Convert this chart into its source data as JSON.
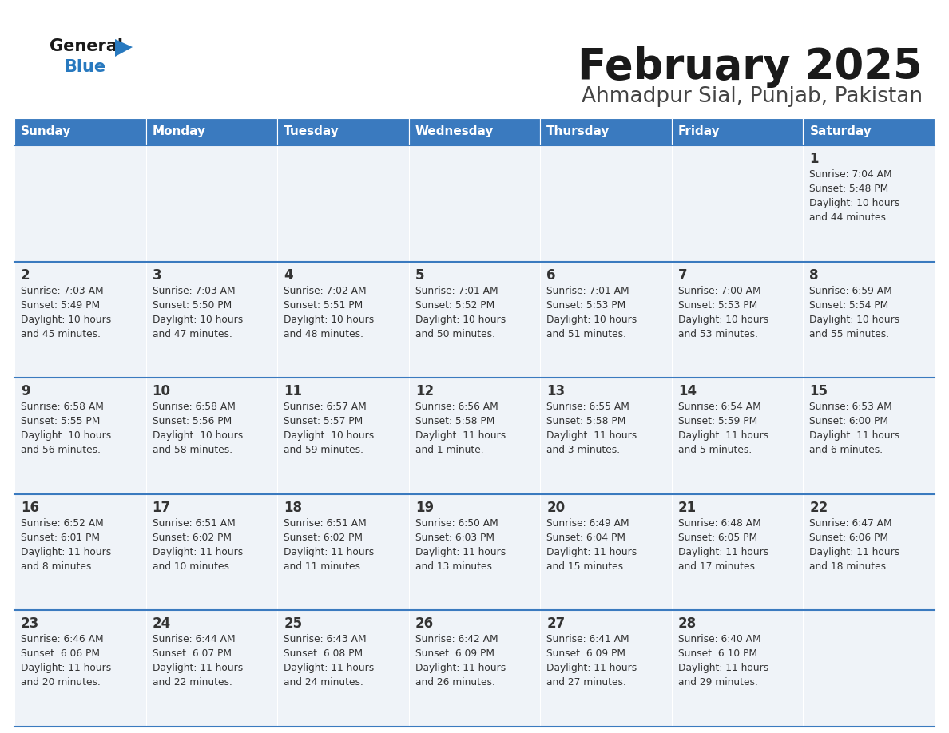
{
  "title": "February 2025",
  "subtitle": "Ahmadpur Sial, Punjab, Pakistan",
  "days_of_week": [
    "Sunday",
    "Monday",
    "Tuesday",
    "Wednesday",
    "Thursday",
    "Friday",
    "Saturday"
  ],
  "header_bg": "#3a7abf",
  "header_text": "#ffffff",
  "cell_bg": "#eff3f8",
  "cell_border_color": "#3a7abf",
  "day_num_color": "#333333",
  "text_color": "#333333",
  "title_color": "#1a1a1a",
  "subtitle_color": "#444444",
  "logo_general_color": "#1a1a1a",
  "logo_blue_color": "#2879bf",
  "calendar_data": [
    [
      null,
      null,
      null,
      null,
      null,
      null,
      {
        "day": "1",
        "sunrise": "7:04 AM",
        "sunset": "5:48 PM",
        "daylight_line1": "Daylight: 10 hours",
        "daylight_line2": "and 44 minutes."
      }
    ],
    [
      {
        "day": "2",
        "sunrise": "7:03 AM",
        "sunset": "5:49 PM",
        "daylight_line1": "Daylight: 10 hours",
        "daylight_line2": "and 45 minutes."
      },
      {
        "day": "3",
        "sunrise": "7:03 AM",
        "sunset": "5:50 PM",
        "daylight_line1": "Daylight: 10 hours",
        "daylight_line2": "and 47 minutes."
      },
      {
        "day": "4",
        "sunrise": "7:02 AM",
        "sunset": "5:51 PM",
        "daylight_line1": "Daylight: 10 hours",
        "daylight_line2": "and 48 minutes."
      },
      {
        "day": "5",
        "sunrise": "7:01 AM",
        "sunset": "5:52 PM",
        "daylight_line1": "Daylight: 10 hours",
        "daylight_line2": "and 50 minutes."
      },
      {
        "day": "6",
        "sunrise": "7:01 AM",
        "sunset": "5:53 PM",
        "daylight_line1": "Daylight: 10 hours",
        "daylight_line2": "and 51 minutes."
      },
      {
        "day": "7",
        "sunrise": "7:00 AM",
        "sunset": "5:53 PM",
        "daylight_line1": "Daylight: 10 hours",
        "daylight_line2": "and 53 minutes."
      },
      {
        "day": "8",
        "sunrise": "6:59 AM",
        "sunset": "5:54 PM",
        "daylight_line1": "Daylight: 10 hours",
        "daylight_line2": "and 55 minutes."
      }
    ],
    [
      {
        "day": "9",
        "sunrise": "6:58 AM",
        "sunset": "5:55 PM",
        "daylight_line1": "Daylight: 10 hours",
        "daylight_line2": "and 56 minutes."
      },
      {
        "day": "10",
        "sunrise": "6:58 AM",
        "sunset": "5:56 PM",
        "daylight_line1": "Daylight: 10 hours",
        "daylight_line2": "and 58 minutes."
      },
      {
        "day": "11",
        "sunrise": "6:57 AM",
        "sunset": "5:57 PM",
        "daylight_line1": "Daylight: 10 hours",
        "daylight_line2": "and 59 minutes."
      },
      {
        "day": "12",
        "sunrise": "6:56 AM",
        "sunset": "5:58 PM",
        "daylight_line1": "Daylight: 11 hours",
        "daylight_line2": "and 1 minute."
      },
      {
        "day": "13",
        "sunrise": "6:55 AM",
        "sunset": "5:58 PM",
        "daylight_line1": "Daylight: 11 hours",
        "daylight_line2": "and 3 minutes."
      },
      {
        "day": "14",
        "sunrise": "6:54 AM",
        "sunset": "5:59 PM",
        "daylight_line1": "Daylight: 11 hours",
        "daylight_line2": "and 5 minutes."
      },
      {
        "day": "15",
        "sunrise": "6:53 AM",
        "sunset": "6:00 PM",
        "daylight_line1": "Daylight: 11 hours",
        "daylight_line2": "and 6 minutes."
      }
    ],
    [
      {
        "day": "16",
        "sunrise": "6:52 AM",
        "sunset": "6:01 PM",
        "daylight_line1": "Daylight: 11 hours",
        "daylight_line2": "and 8 minutes."
      },
      {
        "day": "17",
        "sunrise": "6:51 AM",
        "sunset": "6:02 PM",
        "daylight_line1": "Daylight: 11 hours",
        "daylight_line2": "and 10 minutes."
      },
      {
        "day": "18",
        "sunrise": "6:51 AM",
        "sunset": "6:02 PM",
        "daylight_line1": "Daylight: 11 hours",
        "daylight_line2": "and 11 minutes."
      },
      {
        "day": "19",
        "sunrise": "6:50 AM",
        "sunset": "6:03 PM",
        "daylight_line1": "Daylight: 11 hours",
        "daylight_line2": "and 13 minutes."
      },
      {
        "day": "20",
        "sunrise": "6:49 AM",
        "sunset": "6:04 PM",
        "daylight_line1": "Daylight: 11 hours",
        "daylight_line2": "and 15 minutes."
      },
      {
        "day": "21",
        "sunrise": "6:48 AM",
        "sunset": "6:05 PM",
        "daylight_line1": "Daylight: 11 hours",
        "daylight_line2": "and 17 minutes."
      },
      {
        "day": "22",
        "sunrise": "6:47 AM",
        "sunset": "6:06 PM",
        "daylight_line1": "Daylight: 11 hours",
        "daylight_line2": "and 18 minutes."
      }
    ],
    [
      {
        "day": "23",
        "sunrise": "6:46 AM",
        "sunset": "6:06 PM",
        "daylight_line1": "Daylight: 11 hours",
        "daylight_line2": "and 20 minutes."
      },
      {
        "day": "24",
        "sunrise": "6:44 AM",
        "sunset": "6:07 PM",
        "daylight_line1": "Daylight: 11 hours",
        "daylight_line2": "and 22 minutes."
      },
      {
        "day": "25",
        "sunrise": "6:43 AM",
        "sunset": "6:08 PM",
        "daylight_line1": "Daylight: 11 hours",
        "daylight_line2": "and 24 minutes."
      },
      {
        "day": "26",
        "sunrise": "6:42 AM",
        "sunset": "6:09 PM",
        "daylight_line1": "Daylight: 11 hours",
        "daylight_line2": "and 26 minutes."
      },
      {
        "day": "27",
        "sunrise": "6:41 AM",
        "sunset": "6:09 PM",
        "daylight_line1": "Daylight: 11 hours",
        "daylight_line2": "and 27 minutes."
      },
      {
        "day": "28",
        "sunrise": "6:40 AM",
        "sunset": "6:10 PM",
        "daylight_line1": "Daylight: 11 hours",
        "daylight_line2": "and 29 minutes."
      },
      null
    ]
  ]
}
